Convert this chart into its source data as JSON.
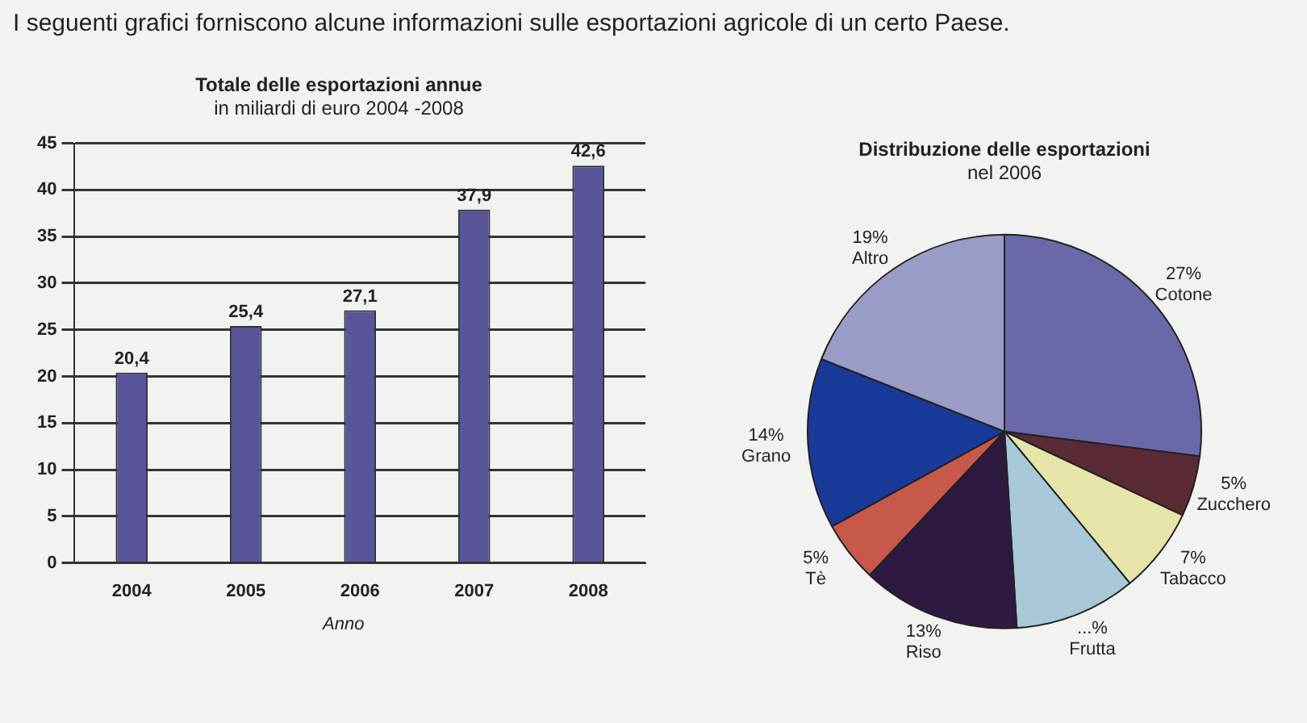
{
  "chart_data": [
    {
      "type": "bar",
      "title": "Totale delle esportazioni annue",
      "subtitle": "in miliardi di euro 2004 -2008",
      "xlabel": "Anno",
      "annotations": [
        "I seguenti grafici forniscono alcune informazioni sulle esportazioni agricole di un certo Paese."
      ],
      "categories": [
        "2004",
        "2005",
        "2006",
        "2007",
        "2008"
      ],
      "values": [
        20.4,
        25.4,
        27.1,
        37.9,
        42.6
      ],
      "value_labels": [
        "20,4",
        "25,4",
        "27,1",
        "37,9",
        "42,6"
      ],
      "color": "#5a549a",
      "ylim": [
        0,
        45
      ],
      "yticks": [
        0,
        5,
        10,
        15,
        20,
        25,
        30,
        35,
        40,
        45
      ],
      "grid": "y",
      "legend": false
    },
    {
      "type": "pie",
      "title": "Distribuzione delle esportazioni",
      "subtitle": "nel 2006",
      "categories": [
        "Cotone",
        "Zucchero",
        "Tabacco",
        "Frutta",
        "Riso",
        "Tè",
        "Grano",
        "Altro"
      ],
      "values": [
        27,
        5,
        7,
        10,
        13,
        5,
        14,
        19
      ],
      "value_labels": [
        "27%",
        "5%",
        "7%",
        "...%",
        "13%",
        "5%",
        "14%",
        "19%"
      ],
      "colors": [
        "#6a68a8",
        "#5a2a35",
        "#e6e4a8",
        "#a8c8d8",
        "#2e1a40",
        "#c8584a",
        "#1a3a9a",
        "#9a9cc8"
      ],
      "legend": false
    }
  ]
}
